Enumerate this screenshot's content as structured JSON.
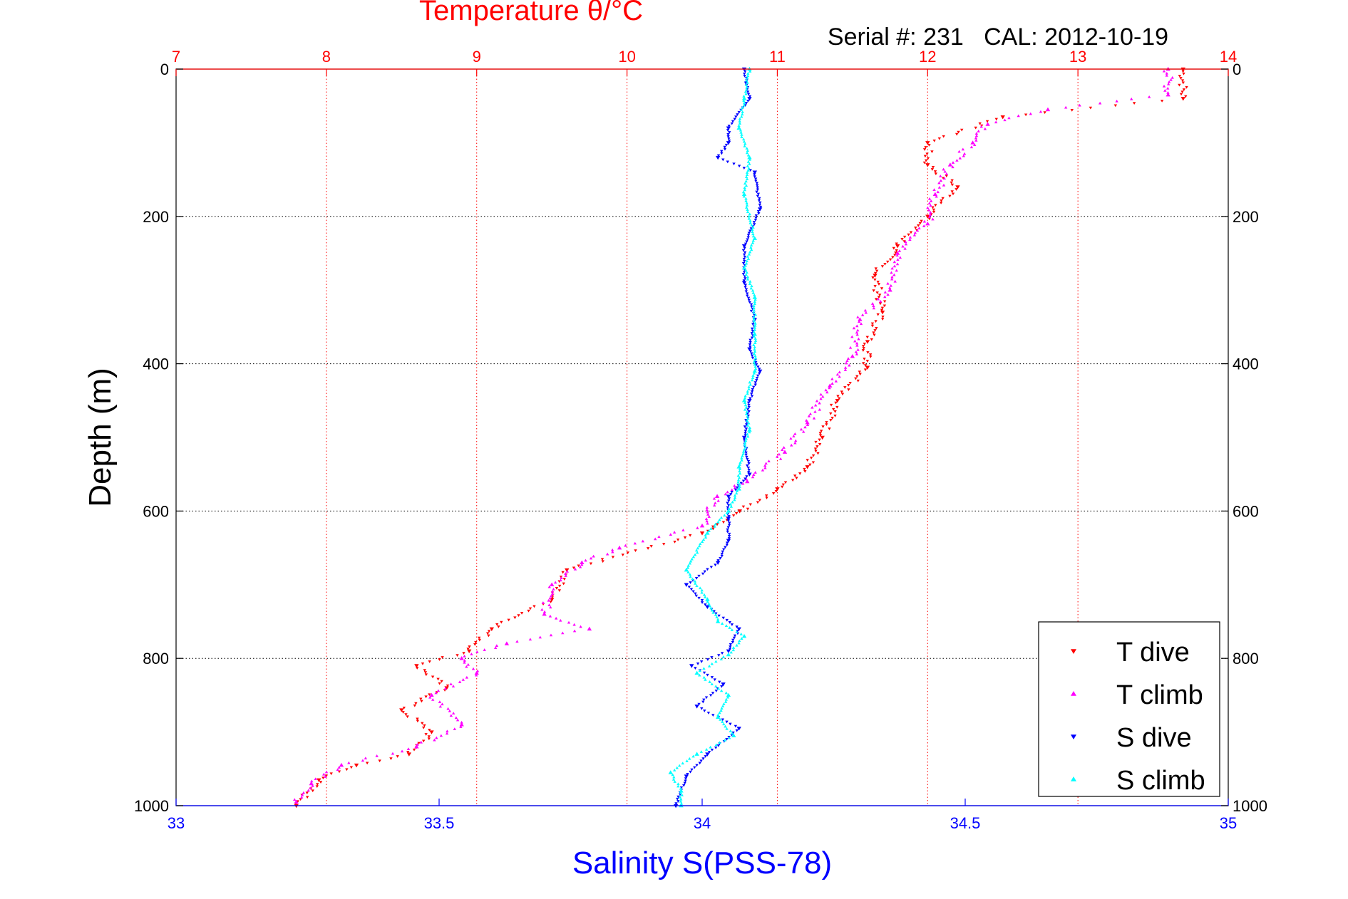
{
  "chart_data": {
    "type": "scatter",
    "title": "Temperature θ/°C",
    "subtitle": "Serial #: 231   CAL: 2012-10-19",
    "ylabel": "Depth (m)",
    "xlabel": "Salinity S(PSS-78)",
    "y_axis": {
      "range": [
        0,
        1000
      ],
      "reversed": true,
      "ticks": [
        "0",
        "200",
        "400",
        "600",
        "800",
        "1000"
      ],
      "grid": true
    },
    "x_top": {
      "label": "Temperature θ/°C",
      "range": [
        7,
        14
      ],
      "ticks": [
        "7",
        "8",
        "9",
        "10",
        "11",
        "12",
        "13",
        "14"
      ],
      "color": "#ff0000",
      "grid": true
    },
    "x_bottom": {
      "label": "Salinity S(PSS-78)",
      "range": [
        33,
        35
      ],
      "ticks": [
        "33",
        "33.5",
        "34",
        "34.5",
        "35"
      ],
      "color": "#0000ff"
    },
    "legend": {
      "placement": "bottom-right"
    },
    "series": [
      {
        "name": "T dive",
        "axis": "top",
        "color": "#ff0000",
        "marker": "triangle-down",
        "points": [
          [
            13.7,
            0
          ],
          [
            13.7,
            40
          ],
          [
            12.5,
            65
          ],
          [
            12.0,
            100
          ],
          [
            12.0,
            130
          ],
          [
            12.2,
            160
          ],
          [
            12.0,
            200
          ],
          [
            11.8,
            240
          ],
          [
            11.65,
            280
          ],
          [
            11.7,
            330
          ],
          [
            11.6,
            370
          ],
          [
            11.6,
            405
          ],
          [
            11.4,
            450
          ],
          [
            11.3,
            500
          ],
          [
            11.2,
            540
          ],
          [
            11.0,
            570
          ],
          [
            10.75,
            600
          ],
          [
            10.5,
            630
          ],
          [
            9.6,
            680
          ],
          [
            9.5,
            720
          ],
          [
            9.1,
            760
          ],
          [
            8.95,
            790
          ],
          [
            8.6,
            810
          ],
          [
            8.8,
            840
          ],
          [
            8.5,
            870
          ],
          [
            8.7,
            900
          ],
          [
            8.55,
            930
          ],
          [
            8.2,
            945
          ],
          [
            7.95,
            965
          ],
          [
            7.8,
            1000
          ]
        ]
      },
      {
        "name": "T climb",
        "axis": "top",
        "color": "#ff00ff",
        "marker": "triangle-up",
        "points": [
          [
            13.6,
            0
          ],
          [
            13.6,
            35
          ],
          [
            12.8,
            55
          ],
          [
            12.4,
            75
          ],
          [
            12.3,
            100
          ],
          [
            12.15,
            130
          ],
          [
            12.05,
            170
          ],
          [
            12.0,
            210
          ],
          [
            11.8,
            250
          ],
          [
            11.75,
            300
          ],
          [
            11.55,
            340
          ],
          [
            11.5,
            390
          ],
          [
            11.35,
            430
          ],
          [
            11.2,
            480
          ],
          [
            11.05,
            520
          ],
          [
            10.8,
            560
          ],
          [
            10.6,
            580
          ],
          [
            10.5,
            620
          ],
          [
            9.95,
            650
          ],
          [
            9.7,
            670
          ],
          [
            9.5,
            700
          ],
          [
            9.45,
            740
          ],
          [
            9.75,
            760
          ],
          [
            9.2,
            780
          ],
          [
            8.9,
            800
          ],
          [
            9.0,
            820
          ],
          [
            8.7,
            850
          ],
          [
            8.9,
            890
          ],
          [
            8.6,
            920
          ],
          [
            8.1,
            945
          ],
          [
            7.9,
            970
          ],
          [
            7.8,
            995
          ]
        ]
      },
      {
        "name": "S dive",
        "axis": "bottom",
        "color": "#0000ff",
        "marker": "triangle-down",
        "points": [
          [
            34.08,
            0
          ],
          [
            34.09,
            40
          ],
          [
            34.05,
            80
          ],
          [
            34.05,
            100
          ],
          [
            34.03,
            120
          ],
          [
            34.1,
            140
          ],
          [
            34.11,
            190
          ],
          [
            34.08,
            240
          ],
          [
            34.08,
            290
          ],
          [
            34.1,
            340
          ],
          [
            34.09,
            380
          ],
          [
            34.11,
            410
          ],
          [
            34.09,
            450
          ],
          [
            34.08,
            500
          ],
          [
            34.09,
            550
          ],
          [
            34.05,
            580
          ],
          [
            34.05,
            610
          ],
          [
            34.05,
            640
          ],
          [
            34.03,
            670
          ],
          [
            33.97,
            700
          ],
          [
            34.01,
            730
          ],
          [
            34.07,
            760
          ],
          [
            34.05,
            790
          ],
          [
            33.98,
            810
          ],
          [
            34.04,
            835
          ],
          [
            33.99,
            865
          ],
          [
            34.07,
            895
          ],
          [
            34.01,
            930
          ],
          [
            33.97,
            960
          ],
          [
            33.95,
            1000
          ]
        ]
      },
      {
        "name": "S climb",
        "axis": "bottom",
        "color": "#00ffff",
        "marker": "triangle-up",
        "points": [
          [
            34.09,
            0
          ],
          [
            34.08,
            40
          ],
          [
            34.07,
            80
          ],
          [
            34.09,
            120
          ],
          [
            34.08,
            170
          ],
          [
            34.1,
            230
          ],
          [
            34.08,
            270
          ],
          [
            34.1,
            310
          ],
          [
            34.1,
            360
          ],
          [
            34.1,
            410
          ],
          [
            34.08,
            450
          ],
          [
            34.09,
            490
          ],
          [
            34.07,
            540
          ],
          [
            34.07,
            570
          ],
          [
            34.05,
            600
          ],
          [
            34.01,
            630
          ],
          [
            33.97,
            680
          ],
          [
            34.01,
            720
          ],
          [
            34.03,
            750
          ],
          [
            34.08,
            770
          ],
          [
            34.05,
            795
          ],
          [
            33.99,
            820
          ],
          [
            34.05,
            850
          ],
          [
            34.03,
            880
          ],
          [
            34.06,
            905
          ],
          [
            33.99,
            930
          ],
          [
            33.94,
            955
          ],
          [
            33.96,
            980
          ],
          [
            33.96,
            1000
          ]
        ]
      }
    ]
  }
}
